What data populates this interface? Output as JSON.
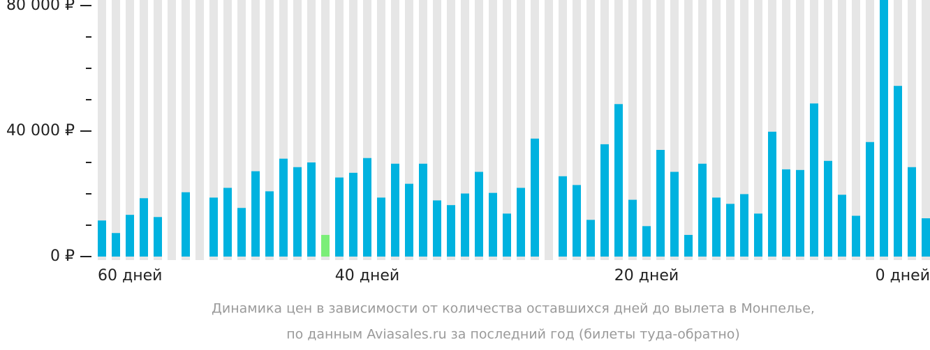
{
  "chart_data": {
    "type": "bar",
    "categories": [
      "60 дней",
      null,
      null,
      null,
      null,
      null,
      null,
      null,
      null,
      null,
      null,
      null,
      null,
      null,
      null,
      null,
      null,
      null,
      null,
      "40 дней",
      null,
      null,
      null,
      null,
      null,
      null,
      null,
      null,
      null,
      null,
      null,
      null,
      null,
      null,
      null,
      null,
      null,
      null,
      null,
      "20 дней",
      null,
      null,
      null,
      null,
      null,
      null,
      null,
      null,
      null,
      null,
      null,
      null,
      null,
      null,
      null,
      null,
      null,
      null,
      null,
      "0 дней"
    ],
    "values": [
      11500,
      7500,
      13300,
      18600,
      12600,
      null,
      20500,
      null,
      18800,
      21900,
      15500,
      27200,
      20800,
      31200,
      28500,
      30000,
      6900,
      25200,
      26700,
      31400,
      18800,
      29600,
      23200,
      29600,
      17900,
      16400,
      20100,
      27000,
      20300,
      13700,
      21900,
      37600,
      null,
      25600,
      22800,
      11700,
      35800,
      48600,
      18100,
      9700,
      34000,
      27000,
      6900,
      29600,
      18800,
      16800,
      19900,
      13700,
      39800,
      27800,
      27600,
      48800,
      30500,
      19700,
      13000,
      36500,
      82000,
      54400,
      28500,
      12200
    ],
    "color": "#00b2df",
    "highlight": {
      "index": 16,
      "color": "#7bee78"
    },
    "background_color": "#e6e6e6",
    "ylim": [
      0,
      80000
    ],
    "yticks": [
      {
        "value": 0,
        "label": "0 ₽"
      },
      {
        "value": 40000,
        "label": "40 000 ₽"
      },
      {
        "value": 80000,
        "label": "80 000 ₽"
      }
    ],
    "yminorticks": [
      10000,
      20000,
      30000,
      50000,
      60000,
      70000
    ],
    "caption": [
      "Динамика цен в зависимости от количества оставшихся дней до вылета в Монпелье,",
      "по данным Aviasales.ru за последний год (билеты туда-обратно)"
    ]
  }
}
